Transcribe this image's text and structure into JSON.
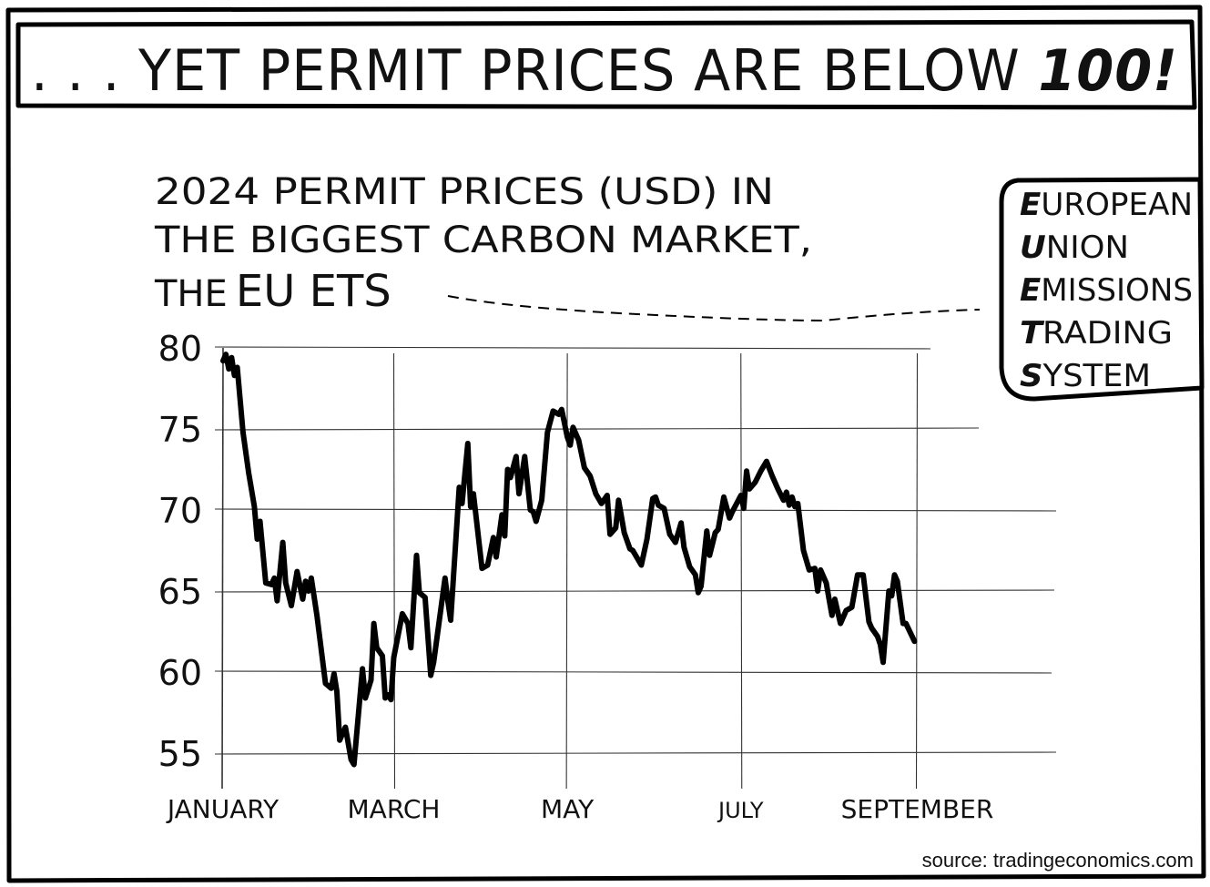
{
  "banner": {
    "prefix": ". . . YET PERMIT PRICES ARE BELOW ",
    "emphasis": "100!"
  },
  "caption": {
    "line1": "2024 PERMIT PRICES (USD) IN",
    "line2": "THE BIGGEST CARBON MARKET,",
    "line3_lead": "THE",
    "line3_term": "EU ETS"
  },
  "legend": {
    "entries": [
      {
        "initial": "E",
        "rest": "UROPEAN"
      },
      {
        "initial": "U",
        "rest": "NION"
      },
      {
        "initial": "E",
        "rest": "MISSIONS"
      },
      {
        "initial": "T",
        "rest": "RADING"
      },
      {
        "initial": "S",
        "rest": "YSTEM"
      }
    ]
  },
  "source": "source: tradingeconomics.com",
  "chart_data": {
    "type": "line",
    "title": "2024 PERMIT PRICES (USD) IN THE BIGGEST CARBON MARKET, THE EU ETS",
    "xlabel": "",
    "ylabel": "",
    "ylim": [
      53,
      80
    ],
    "yticks": [
      80,
      75,
      70,
      65,
      60,
      55
    ],
    "xticks": [
      {
        "label": "JANUARY",
        "date": "2024-01-01"
      },
      {
        "label": "MARCH",
        "date": "2024-03-01"
      },
      {
        "label": "MAY",
        "date": "2024-05-01"
      },
      {
        "label": "JULY",
        "date": "2024-07-01"
      },
      {
        "label": "SEPTEMBER",
        "date": "2024-09-01"
      }
    ],
    "grid": true,
    "series": [
      {
        "points": [
          [
            "2024-01-01",
            79.2
          ],
          [
            "2024-01-02",
            79.6
          ],
          [
            "2024-01-03",
            78.7
          ],
          [
            "2024-01-04",
            79.4
          ],
          [
            "2024-01-05",
            78.3
          ],
          [
            "2024-01-06",
            78.8
          ],
          [
            "2024-01-08",
            74.8
          ],
          [
            "2024-01-10",
            72.3
          ],
          [
            "2024-01-12",
            70.2
          ],
          [
            "2024-01-13",
            68.2
          ],
          [
            "2024-01-14",
            69.3
          ],
          [
            "2024-01-16",
            65.5
          ],
          [
            "2024-01-18",
            65.4
          ],
          [
            "2024-01-19",
            65.8
          ],
          [
            "2024-01-20",
            64.4
          ],
          [
            "2024-01-22",
            68.0
          ],
          [
            "2024-01-23",
            65.5
          ],
          [
            "2024-01-25",
            64.1
          ],
          [
            "2024-01-27",
            66.2
          ],
          [
            "2024-01-29",
            64.5
          ],
          [
            "2024-01-30",
            65.6
          ],
          [
            "2024-01-31",
            65.0
          ],
          [
            "2024-02-01",
            65.8
          ],
          [
            "2024-02-03",
            63.5
          ],
          [
            "2024-02-06",
            59.3
          ],
          [
            "2024-02-08",
            59.0
          ],
          [
            "2024-02-09",
            59.9
          ],
          [
            "2024-02-10",
            58.8
          ],
          [
            "2024-02-11",
            55.8
          ],
          [
            "2024-02-13",
            56.6
          ],
          [
            "2024-02-15",
            54.6
          ],
          [
            "2024-02-16",
            54.3
          ],
          [
            "2024-02-19",
            60.2
          ],
          [
            "2024-02-20",
            58.4
          ],
          [
            "2024-02-22",
            59.5
          ],
          [
            "2024-02-23",
            63.0
          ],
          [
            "2024-02-24",
            61.5
          ],
          [
            "2024-02-26",
            61.0
          ],
          [
            "2024-02-27",
            58.4
          ],
          [
            "2024-02-28",
            58.6
          ],
          [
            "2024-02-29",
            58.3
          ],
          [
            "2024-03-01",
            60.9
          ],
          [
            "2024-03-04",
            63.6
          ],
          [
            "2024-03-06",
            63.0
          ],
          [
            "2024-03-07",
            61.5
          ],
          [
            "2024-03-09",
            67.2
          ],
          [
            "2024-03-10",
            64.9
          ],
          [
            "2024-03-12",
            64.6
          ],
          [
            "2024-03-14",
            59.8
          ],
          [
            "2024-03-15",
            60.6
          ],
          [
            "2024-03-19",
            65.8
          ],
          [
            "2024-03-20",
            64.4
          ],
          [
            "2024-03-21",
            63.2
          ],
          [
            "2024-03-24",
            71.4
          ],
          [
            "2024-03-25",
            70.4
          ],
          [
            "2024-03-27",
            74.1
          ],
          [
            "2024-03-28",
            70.2
          ],
          [
            "2024-03-29",
            71.0
          ],
          [
            "2024-04-01",
            66.4
          ],
          [
            "2024-04-03",
            66.6
          ],
          [
            "2024-04-05",
            68.3
          ],
          [
            "2024-04-06",
            67.1
          ],
          [
            "2024-04-08",
            69.7
          ],
          [
            "2024-04-09",
            68.4
          ],
          [
            "2024-04-10",
            72.5
          ],
          [
            "2024-04-11",
            72.0
          ],
          [
            "2024-04-13",
            73.3
          ],
          [
            "2024-04-14",
            71.0
          ],
          [
            "2024-04-16",
            73.3
          ],
          [
            "2024-04-18",
            70.0
          ],
          [
            "2024-04-19",
            69.9
          ],
          [
            "2024-04-20",
            69.3
          ],
          [
            "2024-04-22",
            70.6
          ],
          [
            "2024-04-24",
            74.8
          ],
          [
            "2024-04-26",
            76.1
          ],
          [
            "2024-04-28",
            75.9
          ],
          [
            "2024-04-29",
            76.2
          ],
          [
            "2024-05-01",
            74.5
          ],
          [
            "2024-05-02",
            74.0
          ],
          [
            "2024-05-03",
            75.1
          ],
          [
            "2024-05-05",
            74.3
          ],
          [
            "2024-05-07",
            72.6
          ],
          [
            "2024-05-09",
            72.1
          ],
          [
            "2024-05-11",
            71.0
          ],
          [
            "2024-05-13",
            70.4
          ],
          [
            "2024-05-15",
            70.9
          ],
          [
            "2024-05-16",
            68.5
          ],
          [
            "2024-05-18",
            68.9
          ],
          [
            "2024-05-19",
            70.6
          ],
          [
            "2024-05-21",
            68.6
          ],
          [
            "2024-05-23",
            67.6
          ],
          [
            "2024-05-24",
            67.5
          ],
          [
            "2024-05-27",
            66.6
          ],
          [
            "2024-05-29",
            68.2
          ],
          [
            "2024-05-31",
            70.7
          ],
          [
            "2024-06-01",
            70.8
          ],
          [
            "2024-06-02",
            70.3
          ],
          [
            "2024-06-04",
            70.1
          ],
          [
            "2024-06-06",
            68.5
          ],
          [
            "2024-06-08",
            68.0
          ],
          [
            "2024-06-10",
            69.2
          ],
          [
            "2024-06-11",
            67.7
          ],
          [
            "2024-06-13",
            66.5
          ],
          [
            "2024-06-15",
            66.0
          ],
          [
            "2024-06-16",
            64.9
          ],
          [
            "2024-06-17",
            65.3
          ],
          [
            "2024-06-19",
            68.7
          ],
          [
            "2024-06-20",
            67.2
          ],
          [
            "2024-06-22",
            68.6
          ],
          [
            "2024-06-23",
            68.8
          ],
          [
            "2024-06-25",
            70.8
          ],
          [
            "2024-06-27",
            69.5
          ],
          [
            "2024-06-28",
            69.9
          ],
          [
            "2024-07-01",
            70.9
          ],
          [
            "2024-07-02",
            70.1
          ],
          [
            "2024-07-03",
            72.4
          ],
          [
            "2024-07-04",
            71.3
          ],
          [
            "2024-07-06",
            71.7
          ],
          [
            "2024-07-08",
            72.4
          ],
          [
            "2024-07-10",
            73.0
          ],
          [
            "2024-07-12",
            72.1
          ],
          [
            "2024-07-14",
            71.3
          ],
          [
            "2024-07-16",
            70.6
          ],
          [
            "2024-07-17",
            71.1
          ],
          [
            "2024-07-18",
            70.3
          ],
          [
            "2024-07-19",
            70.8
          ],
          [
            "2024-07-20",
            70.2
          ],
          [
            "2024-07-21",
            70.4
          ],
          [
            "2024-07-23",
            67.5
          ],
          [
            "2024-07-25",
            66.3
          ],
          [
            "2024-07-27",
            66.4
          ],
          [
            "2024-07-28",
            65.0
          ],
          [
            "2024-07-29",
            66.3
          ],
          [
            "2024-07-31",
            65.5
          ],
          [
            "2024-08-01",
            64.5
          ],
          [
            "2024-08-02",
            63.5
          ],
          [
            "2024-08-03",
            64.5
          ],
          [
            "2024-08-05",
            63.0
          ],
          [
            "2024-08-07",
            63.8
          ],
          [
            "2024-08-09",
            64.0
          ],
          [
            "2024-08-11",
            66.0
          ],
          [
            "2024-08-13",
            66.0
          ],
          [
            "2024-08-15",
            63.1
          ],
          [
            "2024-08-16",
            62.7
          ],
          [
            "2024-08-18",
            62.2
          ],
          [
            "2024-08-19",
            61.7
          ],
          [
            "2024-08-20",
            60.6
          ],
          [
            "2024-08-22",
            65.0
          ],
          [
            "2024-08-23",
            64.7
          ],
          [
            "2024-08-24",
            66.0
          ],
          [
            "2024-08-25",
            65.6
          ],
          [
            "2024-08-27",
            63.0
          ],
          [
            "2024-08-28",
            63.0
          ],
          [
            "2024-08-31",
            61.9
          ]
        ]
      }
    ]
  }
}
